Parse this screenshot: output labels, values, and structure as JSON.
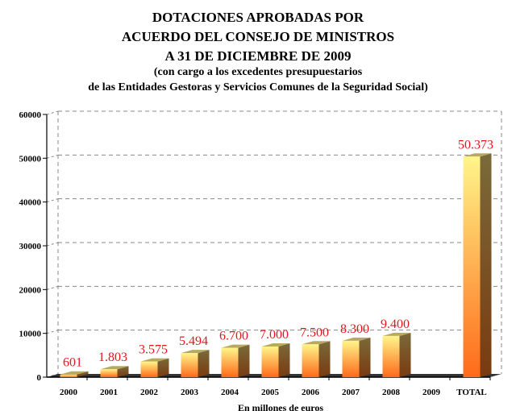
{
  "chart_data": {
    "type": "bar",
    "title": [
      "DOTACIONES APROBADAS POR",
      "ACUERDO DEL CONSEJO DE MINISTROS",
      "A 31 DE DICIEMBRE DE 2009"
    ],
    "subtitle": [
      "(con cargo a los excedentes presupuestarios",
      "de las Entidades Gestoras y Servicios Comunes de la Seguridad Social)"
    ],
    "xlabel": "En millones de euros",
    "ylabel": "",
    "categories": [
      "2000",
      "2001",
      "2002",
      "2003",
      "2004",
      "2005",
      "2006",
      "2007",
      "2008",
      "2009",
      "TOTAL"
    ],
    "values": [
      601,
      1803,
      3575,
      5494,
      6700,
      7000,
      7500,
      8300,
      9400,
      0,
      50373
    ],
    "data_labels": [
      "601",
      "1.803",
      "3.575",
      "5.494",
      "6.700",
      "7.000",
      "7.500",
      "8.300",
      "9.400",
      "",
      "50.373"
    ],
    "yticks": [
      "0",
      "10000",
      "20000",
      "30000",
      "40000",
      "50000",
      "60000"
    ],
    "ylim": [
      0,
      60000
    ],
    "grid": true,
    "bar_style": "3d gradient yellow to orange",
    "colors": {
      "label": "#e8141c",
      "bar_top": "#fff58a",
      "bar_bottom": "#ff6a1a",
      "bar_side": "#7a6a3a"
    }
  }
}
